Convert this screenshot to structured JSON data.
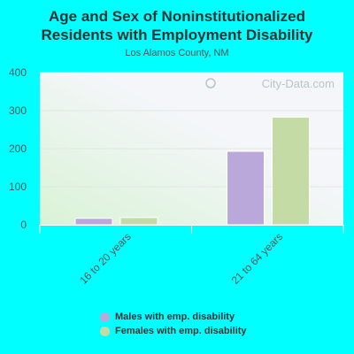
{
  "title_line1": "Age and Sex of Noninstitutionalized",
  "title_line2": "Residents with Employment Disability",
  "subtitle": "Los Alamos County, NM",
  "watermark": "City-Data.com",
  "colors": {
    "background": "#00ffff",
    "plot_gradient_top": "#f4f6f9",
    "plot_gradient_bottom": "#d9f3d6",
    "males": "#bba8db",
    "females": "#c4dba6",
    "axis_text": "#555555"
  },
  "chart_data": {
    "type": "bar",
    "title": "Age and Sex of Noninstitutionalized Residents with Employment Disability",
    "subtitle": "Los Alamos County, NM",
    "categories": [
      "16 to 20 years",
      "21 to 64 years"
    ],
    "series": [
      {
        "name": "Males with emp. disability",
        "values": [
          17,
          193
        ]
      },
      {
        "name": "Females with emp. disability",
        "values": [
          19,
          283
        ]
      }
    ],
    "ylim": [
      0,
      400
    ],
    "yticks": [
      "0",
      "100",
      "200",
      "300",
      "400"
    ],
    "grid": true,
    "legend_position": "bottom"
  }
}
